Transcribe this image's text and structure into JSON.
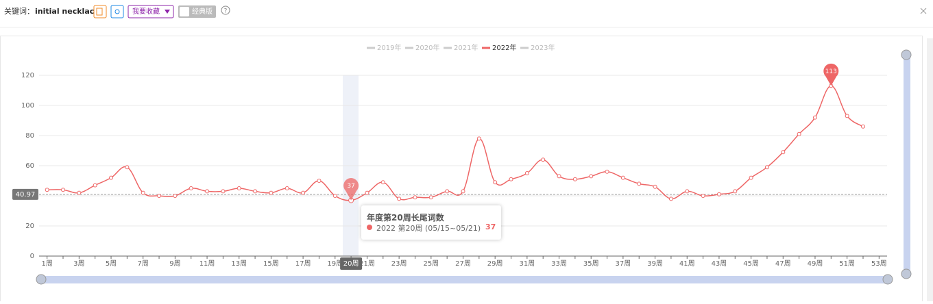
{
  "header": {
    "label": "关键词：",
    "keyword": "initial necklace",
    "favorite": "我要收藏",
    "classic": "经典版"
  },
  "chart_data": {
    "type": "line",
    "categories": [
      "1周",
      null,
      "3周",
      null,
      "5周",
      null,
      "7周",
      null,
      "9周",
      null,
      "11周",
      null,
      "13周",
      null,
      "15周",
      null,
      "17周",
      null,
      "19周",
      "20周",
      "21周",
      null,
      "23周",
      null,
      "25周",
      null,
      "27周",
      null,
      "29周",
      null,
      "31周",
      null,
      "33周",
      null,
      "35周",
      null,
      "37周",
      null,
      "39周",
      null,
      "41周",
      null,
      "43周",
      null,
      "45周",
      null,
      "47周",
      null,
      "49周",
      null,
      "51周",
      null,
      "53周"
    ],
    "series": [
      {
        "name": "2019年",
        "color": "#cccccc",
        "hidden": true
      },
      {
        "name": "2020年",
        "color": "#cccccc",
        "hidden": true
      },
      {
        "name": "2021年",
        "color": "#cccccc",
        "hidden": true
      },
      {
        "name": "2022年",
        "color": "#ee6666",
        "values": [
          44,
          44,
          42,
          47,
          52,
          59,
          42,
          40,
          40,
          45,
          43,
          43,
          45,
          43,
          42,
          45,
          42,
          50,
          40,
          37,
          42,
          49,
          38,
          39,
          39,
          43,
          43,
          78,
          49,
          51,
          55,
          64,
          53,
          51,
          53,
          56,
          52,
          48,
          46,
          38,
          43,
          40,
          41,
          43,
          52,
          59,
          69,
          81,
          92,
          113,
          93,
          86,
          null
        ]
      },
      {
        "name": "2023年",
        "color": "#cccccc",
        "hidden": true
      }
    ],
    "ylim": [
      0,
      120
    ],
    "yticks": [
      0,
      20,
      40,
      60,
      80,
      100,
      120
    ],
    "grid": true,
    "average_line": 40.97,
    "tooltip": {
      "title": "年度第20周长尾词数",
      "label": "2022 第20周 (05/15~05/21)"
    }
  }
}
